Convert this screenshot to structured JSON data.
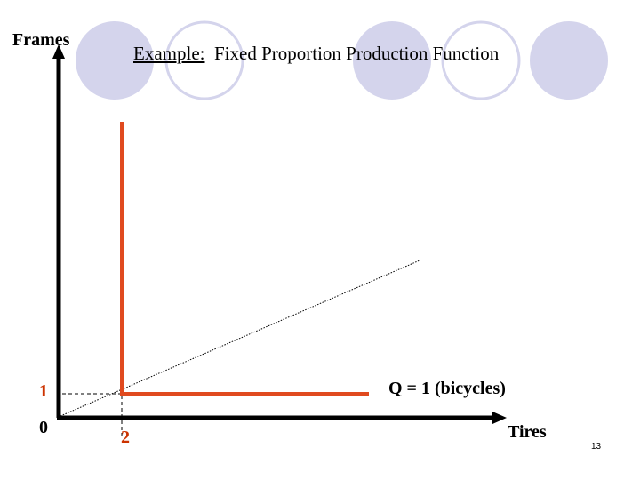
{
  "slide": {
    "title_prefix": "Example:",
    "title_rest": "  Fixed Proportion Production Function",
    "page_number": "13"
  },
  "axes": {
    "y_label": "Frames",
    "x_label": "Tires"
  },
  "isoquant": {
    "label": "Q = 1 (bicycles)",
    "corner_x": 2,
    "corner_y": 1,
    "color": "#e04a1f"
  },
  "ticks": {
    "origin": "0",
    "y_one": "1",
    "x_two": "2",
    "tick_color": "#cc3300"
  },
  "decor": {
    "circle_fill": "#d4d4ec",
    "circle_stroke": "#d4d4ec"
  }
}
